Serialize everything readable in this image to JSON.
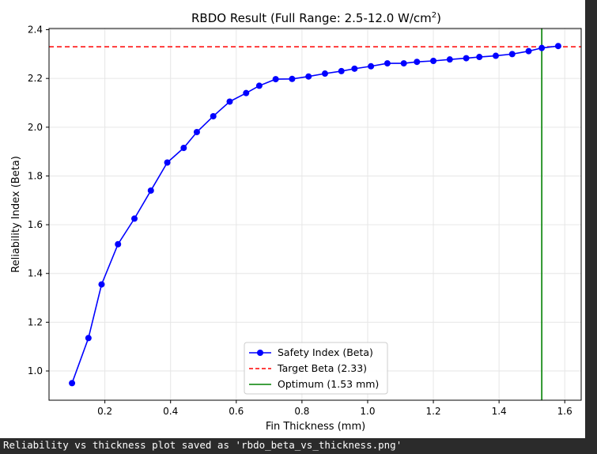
{
  "console": {
    "output_text": "Reliability vs thickness plot saved as 'rbdo_beta_vs_thickness.png'"
  },
  "chart_data": {
    "type": "line",
    "title_main": "RBDO Result (Full Range: 2.5-12.0 W/cm",
    "title_sup": "2",
    "title_end": ")",
    "xlabel": "Fin Thickness (mm)",
    "ylabel": "Reliability Index (Beta)",
    "xlim": [
      0.03,
      1.65
    ],
    "ylim": [
      0.88,
      2.405
    ],
    "x_ticks": [
      0.2,
      0.4,
      0.6,
      0.8,
      1.0,
      1.2,
      1.4,
      1.6
    ],
    "x_tick_labels": [
      "0.2",
      "0.4",
      "0.6",
      "0.8",
      "1.0",
      "1.2",
      "1.4",
      "1.6"
    ],
    "y_ticks": [
      1.0,
      1.2,
      1.4,
      1.6,
      1.8,
      2.0,
      2.2,
      2.4
    ],
    "y_tick_labels": [
      "1.0",
      "1.2",
      "1.4",
      "1.6",
      "1.8",
      "2.0",
      "2.2",
      "2.4"
    ],
    "grid": true,
    "legend_position": "lower-center",
    "series": [
      {
        "name": "Safety Index (Beta)",
        "color": "#0000ff",
        "style": "line-with-markers",
        "x": [
          0.1,
          0.15,
          0.19,
          0.24,
          0.29,
          0.34,
          0.39,
          0.44,
          0.48,
          0.53,
          0.58,
          0.63,
          0.67,
          0.72,
          0.77,
          0.82,
          0.87,
          0.92,
          0.96,
          1.01,
          1.06,
          1.11,
          1.15,
          1.2,
          1.25,
          1.3,
          1.34,
          1.39,
          1.44,
          1.49,
          1.53,
          1.58
        ],
        "y": [
          0.95,
          1.135,
          1.355,
          1.52,
          1.625,
          1.74,
          1.855,
          1.915,
          1.98,
          2.045,
          2.105,
          2.14,
          2.17,
          2.197,
          2.198,
          2.208,
          2.22,
          2.23,
          2.24,
          2.25,
          2.262,
          2.262,
          2.268,
          2.272,
          2.278,
          2.283,
          2.288,
          2.293,
          2.3,
          2.312,
          2.325,
          2.333
        ]
      }
    ],
    "reference_lines": [
      {
        "name": "Target Beta (2.33)",
        "orientation": "horizontal",
        "value": 2.33,
        "color": "#ff0000",
        "style": "dashed"
      },
      {
        "name": "Optimum (1.53 mm)",
        "orientation": "vertical",
        "value": 1.53,
        "color": "#008000",
        "style": "solid"
      }
    ]
  }
}
